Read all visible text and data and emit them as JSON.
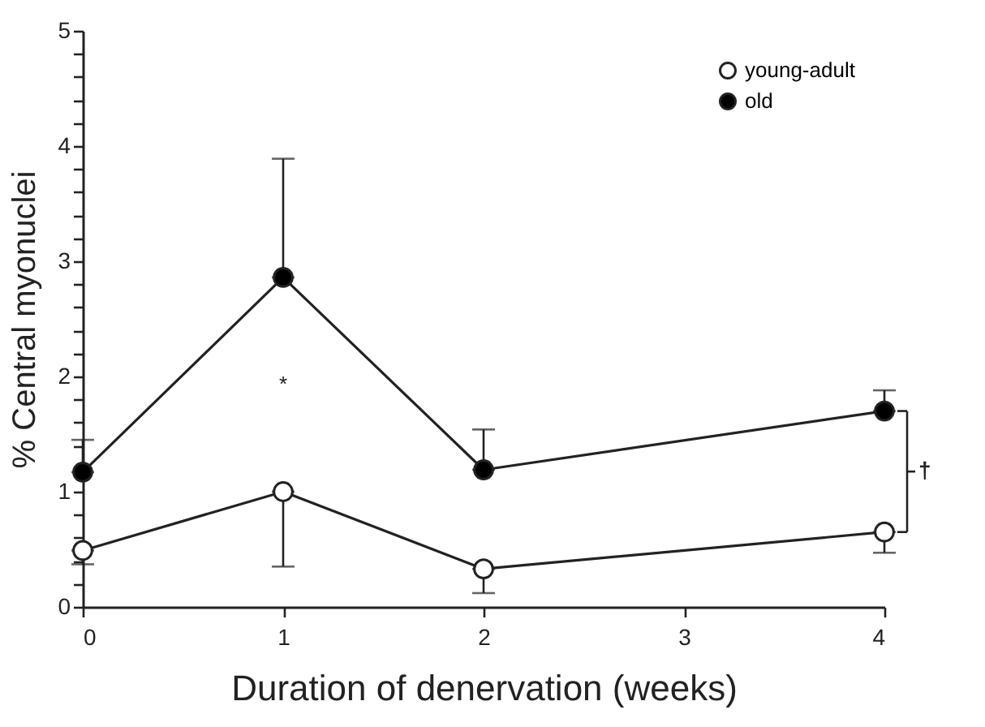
{
  "chart_data": {
    "type": "line",
    "xlabel": "Duration of denervation (weeks)",
    "ylabel": "% Central myonuclei",
    "x": [
      0,
      1,
      2,
      4
    ],
    "series": [
      {
        "name": "young-adult",
        "color": "#ffffff",
        "values": [
          0.49,
          1.0,
          0.33,
          0.65
        ],
        "errors": [
          [
            0.37,
            0.49
          ],
          [
            0.35,
            1.0
          ],
          [
            0.12,
            0.33
          ],
          [
            0.47,
            0.65
          ]
        ]
      },
      {
        "name": "old",
        "color": "#000000",
        "values": [
          1.17,
          2.86,
          1.19,
          1.7
        ],
        "errors": [
          [
            1.17,
            1.45
          ],
          [
            2.86,
            3.89
          ],
          [
            1.19,
            1.54
          ],
          [
            1.7,
            1.88
          ]
        ]
      }
    ],
    "xlim": [
      0,
      4
    ],
    "xticks": [
      0,
      1,
      2,
      3,
      4
    ],
    "ylim": [
      0,
      5
    ],
    "yticks": [
      0,
      {
        "value": 0.2,
        "label": null
      },
      {
        "value": 0.4,
        "label": null
      },
      {
        "value": 0.6,
        "label": null
      },
      {
        "value": 0.8,
        "label": null
      },
      1,
      {
        "value": 1.2,
        "label": null
      },
      {
        "value": 1.4,
        "label": null
      },
      {
        "value": 1.6,
        "label": null
      },
      {
        "value": 1.8,
        "label": null
      },
      2,
      {
        "value": 2.2,
        "label": null
      },
      {
        "value": 2.4,
        "label": null
      },
      {
        "value": 2.6,
        "label": null
      },
      {
        "value": 2.8,
        "label": null
      },
      3,
      {
        "value": 3.2,
        "label": null
      },
      {
        "value": 3.4,
        "label": null
      },
      {
        "value": 3.6,
        "label": null
      },
      {
        "value": 3.8,
        "label": null
      },
      4,
      {
        "value": 4.2,
        "label": null
      },
      {
        "value": 4.4,
        "label": null
      },
      {
        "value": 4.6,
        "label": null
      },
      {
        "value": 4.8,
        "label": null
      },
      5
    ],
    "annotations": [
      "*",
      "†"
    ],
    "legend": "top right",
    "marker": "circle",
    "line_style": "solid",
    "grid": false
  }
}
